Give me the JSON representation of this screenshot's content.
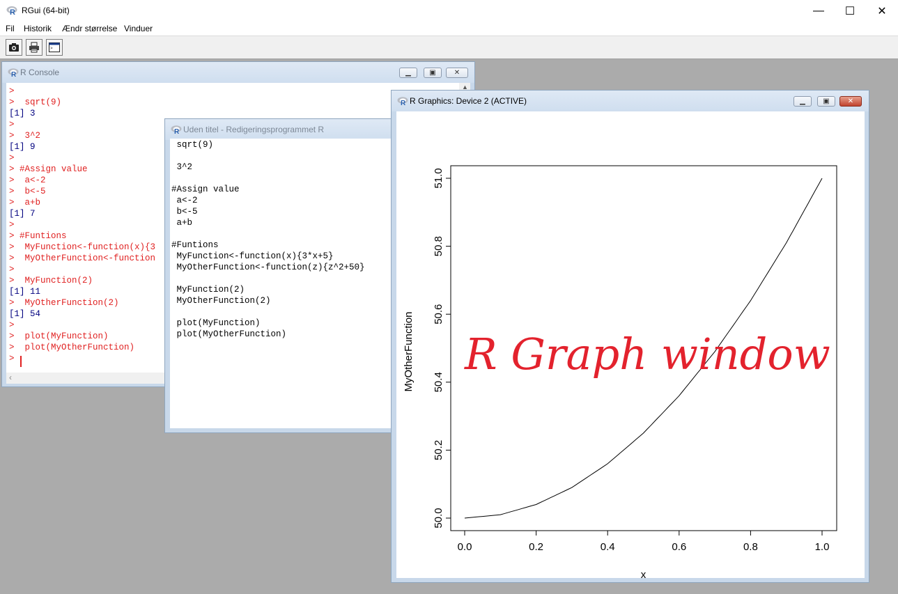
{
  "app": {
    "title": "RGui (64-bit)",
    "window_controls": {
      "minimize": "—",
      "maximize": "☐",
      "close": "✕"
    }
  },
  "menu": [
    "Fil",
    "Historik",
    "Ændr størrelse",
    "Vinduer"
  ],
  "toolbar": {
    "buttons": [
      "camera-icon",
      "printer-icon",
      "console-window-icon"
    ]
  },
  "console": {
    "title": "R Console",
    "lines": [
      {
        "kind": "prompt",
        "text": ">"
      },
      {
        "kind": "prompt",
        "text": ">  sqrt(9)"
      },
      {
        "kind": "output",
        "text": "[1] 3"
      },
      {
        "kind": "prompt",
        "text": ">"
      },
      {
        "kind": "prompt",
        "text": ">  3^2"
      },
      {
        "kind": "output",
        "text": "[1] 9"
      },
      {
        "kind": "prompt",
        "text": ">"
      },
      {
        "kind": "prompt",
        "text": "> #Assign value"
      },
      {
        "kind": "prompt",
        "text": ">  a<-2"
      },
      {
        "kind": "prompt",
        "text": ">  b<-5"
      },
      {
        "kind": "prompt",
        "text": ">  a+b"
      },
      {
        "kind": "output",
        "text": "[1] 7"
      },
      {
        "kind": "prompt",
        "text": ">"
      },
      {
        "kind": "prompt",
        "text": "> #Funtions"
      },
      {
        "kind": "prompt",
        "text": ">  MyFunction<-function(x){3"
      },
      {
        "kind": "prompt",
        "text": ">  MyOtherFunction<-function"
      },
      {
        "kind": "prompt",
        "text": ">"
      },
      {
        "kind": "prompt",
        "text": ">  MyFunction(2)"
      },
      {
        "kind": "output",
        "text": "[1] 11"
      },
      {
        "kind": "prompt",
        "text": ">  MyOtherFunction(2)"
      },
      {
        "kind": "output",
        "text": "[1] 54"
      },
      {
        "kind": "prompt",
        "text": ">"
      },
      {
        "kind": "prompt",
        "text": ">  plot(MyFunction)"
      },
      {
        "kind": "prompt",
        "text": ">  plot(MyOtherFunction)"
      },
      {
        "kind": "prompt",
        "text": ">"
      }
    ]
  },
  "editor": {
    "title": "Uden titel - Redigeringsprogrammet R",
    "lines": [
      " sqrt(9)",
      "",
      " 3^2",
      "",
      "#Assign value",
      " a<-2",
      " b<-5",
      " a+b",
      "",
      "#Funtions",
      " MyFunction<-function(x){3*x+5}",
      " MyOtherFunction<-function(z){z^2+50}",
      "",
      " MyFunction(2)",
      " MyOtherFunction(2)",
      "",
      " plot(MyFunction)",
      " plot(MyOtherFunction)"
    ]
  },
  "graphics": {
    "title": "R Graphics: Device 2 (ACTIVE)",
    "annotation": "R Graph window",
    "annotation_color": "#e3222d"
  },
  "chart_data": {
    "type": "line",
    "function": "z^2+50",
    "x": [
      0,
      0.1,
      0.2,
      0.3,
      0.4,
      0.5,
      0.6,
      0.7,
      0.8,
      0.9,
      1.0
    ],
    "y": [
      50.0,
      50.01,
      50.04,
      50.09,
      50.16,
      50.25,
      50.36,
      50.49,
      50.64,
      50.81,
      51.0
    ],
    "xlabel": "x",
    "ylabel": "MyOtherFunction",
    "xlim": [
      0,
      1
    ],
    "ylim": [
      50,
      51
    ],
    "xticks": [
      "0.0",
      "0.2",
      "0.4",
      "0.6",
      "0.8",
      "1.0"
    ],
    "yticks": [
      "50.0",
      "50.2",
      "50.4",
      "50.6",
      "50.8",
      "51.0"
    ],
    "grid": false
  }
}
